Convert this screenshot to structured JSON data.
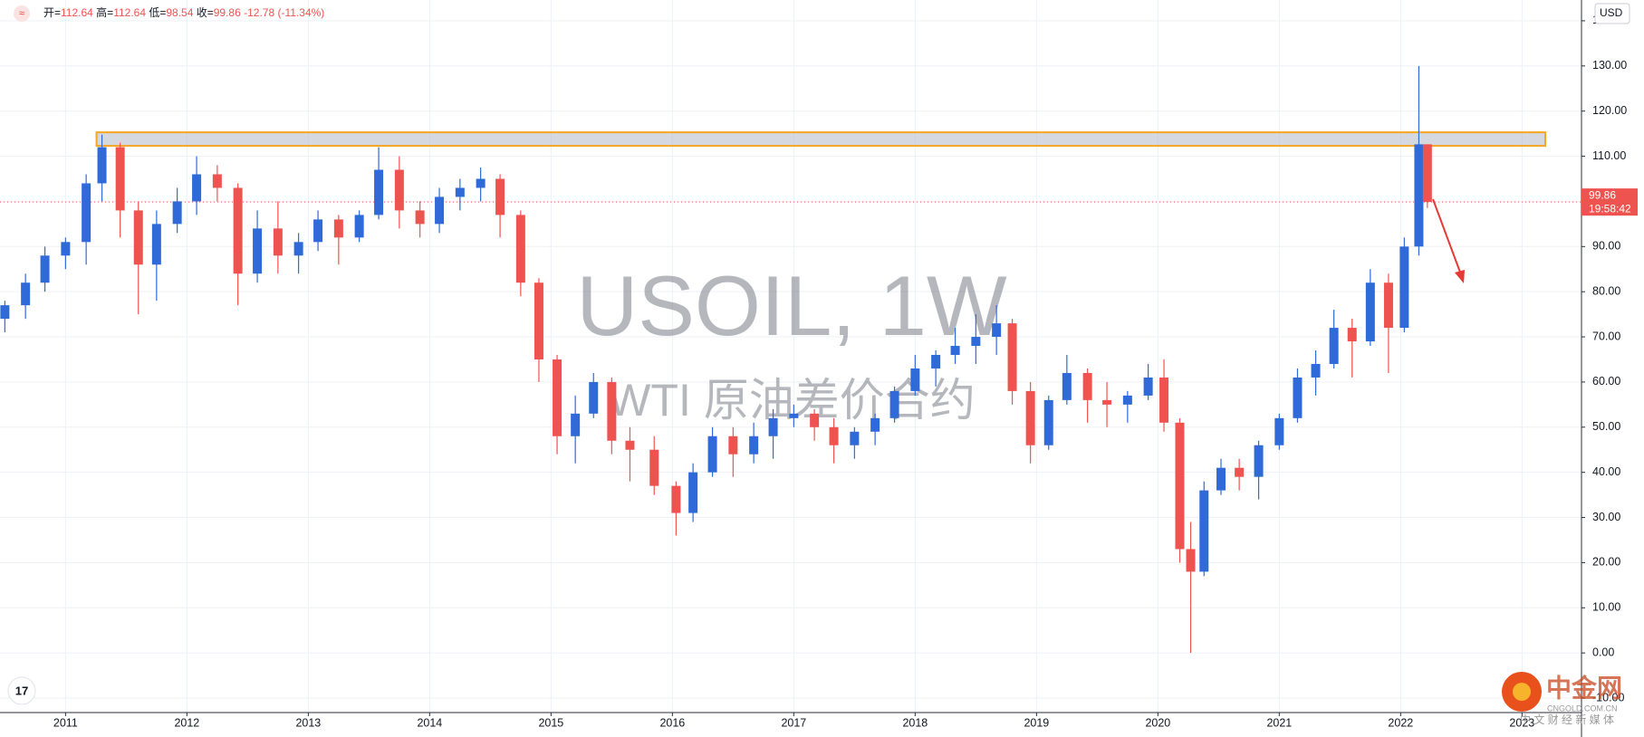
{
  "chart_data": {
    "type": "candlestick",
    "title": "USOIL, 1W",
    "subtitle": "WTI 原油差价合约",
    "ohlc_labels": [
      "开=",
      "高=",
      "低=",
      "收="
    ],
    "ohlc_values": [
      112.64,
      112.64,
      98.54,
      99.86
    ],
    "change": -12.78,
    "change_pct": {
      "value": -11.34,
      "label": "(-11.34%)"
    },
    "countdown": "19:58:42",
    "currency": "USD",
    "brand": "中金网",
    "brand_url": "CNGOLD.COM.CN",
    "brand_slogan": "中 文 财 经 新 媒 体",
    "up_color": "#2f6ad8",
    "down_color": "#ef5350",
    "zone": [
      112.3,
      115.3
    ],
    "x": [
      2010.5,
      2010.67,
      2010.83,
      2011.0,
      2011.17,
      2011.3,
      2011.45,
      2011.6,
      2011.75,
      2011.92,
      2012.08,
      2012.25,
      2012.42,
      2012.58,
      2012.75,
      2012.92,
      2013.08,
      2013.25,
      2013.42,
      2013.58,
      2013.75,
      2013.92,
      2014.08,
      2014.25,
      2014.42,
      2014.58,
      2014.75,
      2014.9,
      2015.05,
      2015.2,
      2015.35,
      2015.5,
      2015.65,
      2015.85,
      2016.03,
      2016.17,
      2016.33,
      2016.5,
      2016.67,
      2016.83,
      2017.0,
      2017.17,
      2017.33,
      2017.5,
      2017.67,
      2017.83,
      2018.0,
      2018.17,
      2018.33,
      2018.5,
      2018.67,
      2018.8,
      2018.95,
      2019.1,
      2019.25,
      2019.42,
      2019.58,
      2019.75,
      2019.92,
      2020.05,
      2020.18,
      2020.27,
      2020.38,
      2020.52,
      2020.67,
      2020.83,
      2021.0,
      2021.15,
      2021.3,
      2021.45,
      2021.6,
      2021.75,
      2021.9,
      2022.03,
      2022.15,
      2022.22
    ],
    "open": [
      74,
      77,
      82,
      88,
      91,
      104,
      112,
      98,
      86,
      95,
      100,
      106,
      103,
      84,
      94,
      88,
      91,
      96,
      92,
      97,
      107,
      98,
      95,
      101,
      103,
      105,
      97,
      82,
      65,
      48,
      53,
      60,
      47,
      45,
      37,
      31,
      40,
      48,
      44,
      48,
      52,
      53,
      50,
      46,
      49,
      52,
      58,
      63,
      66,
      68,
      70,
      73,
      58,
      46,
      56,
      62,
      56,
      55,
      57,
      61,
      51,
      23,
      18,
      36,
      41,
      39,
      46,
      52,
      61,
      64,
      72,
      69,
      82,
      72,
      90,
      112.64
    ],
    "high": [
      78,
      84,
      90,
      92,
      106,
      114.8,
      113,
      100,
      98,
      103,
      110,
      108,
      104,
      98,
      100,
      93,
      98,
      97,
      98,
      112,
      110,
      100,
      103,
      105,
      107.5,
      106,
      98,
      83,
      66,
      57,
      62,
      61,
      50,
      48,
      38,
      42,
      50,
      50,
      51,
      54,
      55,
      54,
      52,
      50,
      53,
      59,
      66,
      67,
      72,
      75,
      77,
      74,
      60,
      57,
      66,
      63,
      60,
      58,
      64,
      65,
      52,
      29,
      38,
      43,
      43,
      47,
      53,
      63,
      67,
      76,
      74,
      85,
      84,
      92,
      130,
      112.64
    ],
    "low": [
      71,
      74,
      80,
      85,
      86,
      100,
      92,
      75,
      78,
      93,
      97,
      100,
      77,
      82,
      84,
      84,
      89,
      86,
      91,
      96,
      94,
      92,
      93,
      98,
      100,
      92,
      79,
      60,
      44,
      42,
      52,
      44,
      38,
      35,
      26,
      29,
      39,
      39,
      42,
      43,
      50,
      47,
      42,
      43,
      46,
      51,
      57,
      59,
      64,
      64,
      66,
      55,
      42,
      45,
      55,
      51,
      50,
      51,
      56,
      49,
      20,
      0,
      17,
      35,
      36,
      34,
      45,
      51,
      57,
      63,
      61,
      68,
      62,
      71,
      88,
      98.54
    ],
    "close": [
      77,
      82,
      88,
      91,
      104,
      112,
      98,
      86,
      95,
      100,
      106,
      103,
      84,
      94,
      88,
      91,
      96,
      92,
      97,
      107,
      98,
      95,
      101,
      103,
      105,
      97,
      82,
      65,
      48,
      53,
      60,
      47,
      45,
      37,
      31,
      40,
      48,
      44,
      48,
      52,
      53,
      50,
      46,
      49,
      52,
      58,
      63,
      66,
      68,
      70,
      73,
      58,
      46,
      56,
      62,
      56,
      55,
      57,
      61,
      51,
      23,
      18,
      36,
      41,
      39,
      46,
      52,
      61,
      64,
      72,
      69,
      82,
      72,
      90,
      112.64,
      99.86
    ],
    "xlim": [
      2010.46,
      2023.49
    ],
    "xticks": [
      2011,
      2012,
      2013,
      2014,
      2015,
      2016,
      2017,
      2018,
      2019,
      2020,
      2021,
      2022,
      2023
    ],
    "ylim": [
      -13.2,
      144.6
    ],
    "yticks": [
      {
        "value": -10,
        "label": "-10.00"
      },
      {
        "value": 0,
        "label": "0.00"
      },
      {
        "value": 10,
        "label": "10.00"
      },
      {
        "value": 20,
        "label": "20.00"
      },
      {
        "value": 30,
        "label": "30.00"
      },
      {
        "value": 40,
        "label": "40.00"
      },
      {
        "value": 50,
        "label": "50.00"
      },
      {
        "value": 60,
        "label": "60.00"
      },
      {
        "value": 70,
        "label": "70.00"
      },
      {
        "value": 80,
        "label": "80.00"
      },
      {
        "value": 90,
        "label": "90.00"
      },
      {
        "value": 100,
        "label": "100.00"
      },
      {
        "value": 110,
        "label": "110.00"
      },
      {
        "value": 120,
        "label": "120.00"
      },
      {
        "value": 130,
        "label": "130.00"
      },
      {
        "value": 140,
        "label": "140.00"
      }
    ],
    "grid": true
  }
}
